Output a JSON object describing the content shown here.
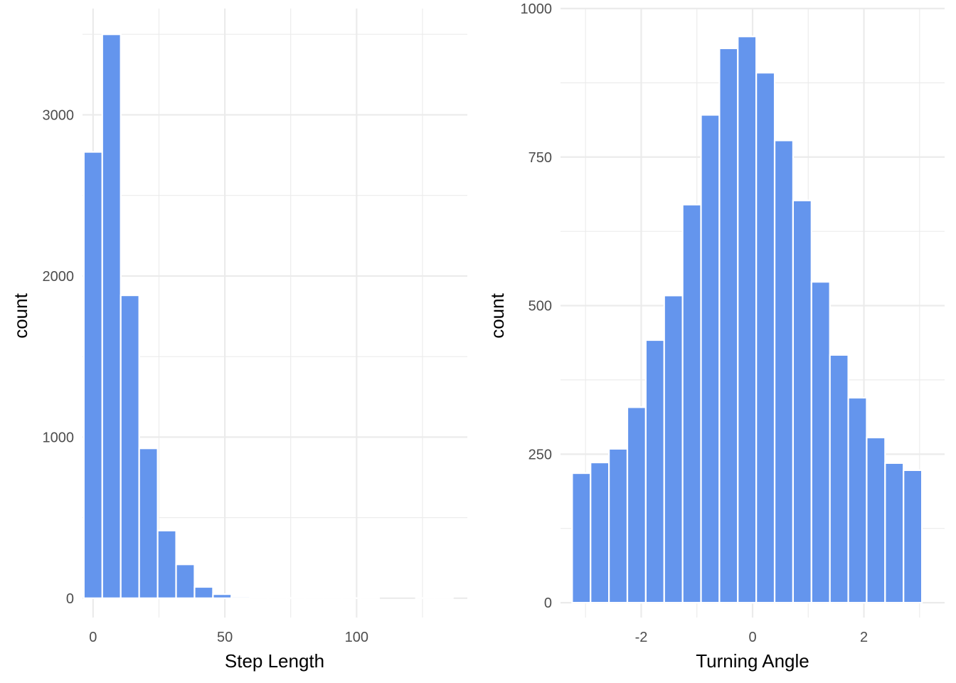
{
  "chart_data": [
    {
      "type": "bar",
      "subtype": "histogram",
      "xlabel": "Step Length",
      "ylabel": "count",
      "bar_color": "#6495ED",
      "xlim": [
        -4,
        142
      ],
      "ylim": [
        -120,
        3660
      ],
      "x_ticks": [
        0,
        50,
        100
      ],
      "y_ticks": [
        0,
        1000,
        2000,
        3000
      ],
      "bin_width": 7,
      "bin_centers": [
        0,
        7,
        14,
        21,
        28,
        35,
        42,
        49,
        56,
        63,
        70,
        77,
        84,
        91,
        98,
        105,
        112,
        119,
        126,
        133
      ],
      "values": [
        2770,
        3500,
        1880,
        930,
        420,
        210,
        70,
        25,
        10,
        5,
        3,
        2,
        1,
        1,
        1,
        1,
        0,
        0,
        1,
        1
      ],
      "grid": true
    },
    {
      "type": "bar",
      "subtype": "histogram",
      "xlabel": "Turning Angle",
      "ylabel": "count",
      "bar_color": "#6495ED",
      "xlim": [
        -3.45,
        3.45
      ],
      "ylim": [
        -25,
        1000
      ],
      "x_ticks": [
        -2,
        0,
        2
      ],
      "y_ticks": [
        0,
        250,
        500,
        750,
        1000
      ],
      "bin_width": 0.3307,
      "bin_centers": [
        -3.0757,
        -2.745,
        -2.4143,
        -2.0836,
        -1.7529,
        -1.4222,
        -1.0915,
        -0.7608,
        -0.4301,
        -0.0994,
        0.2313,
        0.562,
        0.8927,
        1.2234,
        1.5541,
        1.8848,
        2.2155,
        2.5462,
        2.8769,
        3.2076
      ],
      "values": [
        218,
        236,
        259,
        329,
        442,
        517,
        670,
        821,
        933,
        953,
        892,
        778,
        677,
        540,
        417,
        345,
        278,
        235,
        223,
        0
      ],
      "grid": true
    }
  ]
}
